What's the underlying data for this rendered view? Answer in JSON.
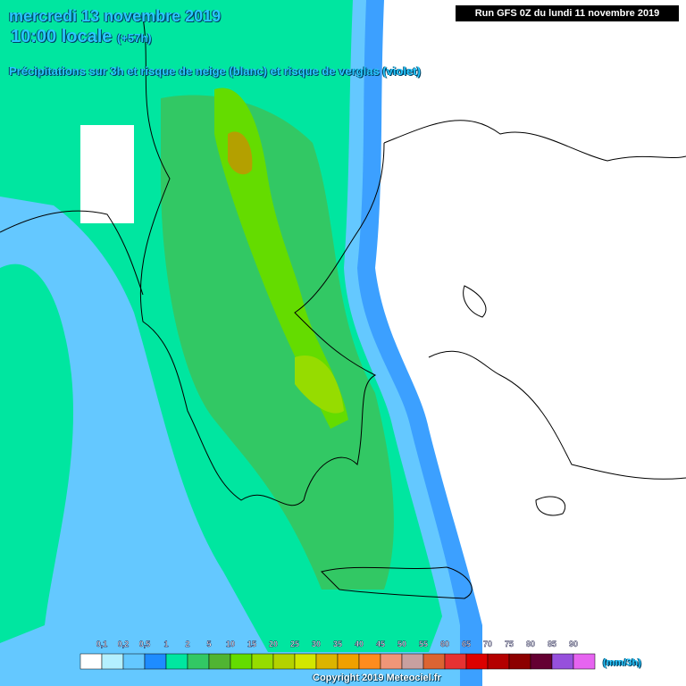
{
  "header": {
    "date": "mercredi 13 novembre 2019",
    "time": "10:00 locale",
    "lead": "(+57h)",
    "subtitle": "Précipitations sur 3h et risque de neige (blanc) et risque de verglas (violet)"
  },
  "run": "Run GFS 0Z du lundi 11 novembre 2019",
  "legend": {
    "labels": [
      "0,1",
      "0,2",
      "0,5",
      "1",
      "2",
      "5",
      "10",
      "15",
      "20",
      "25",
      "30",
      "35",
      "40",
      "45",
      "50",
      "55",
      "60",
      "65",
      "70",
      "75",
      "80",
      "85",
      "90"
    ],
    "colors": [
      "#ffffff",
      "#b4f0ff",
      "#64c8ff",
      "#1e8cff",
      "#00e6a0",
      "#32c864",
      "#50b432",
      "#64dc00",
      "#96dc00",
      "#b4d200",
      "#d2e600",
      "#dcb400",
      "#f0a000",
      "#ff8c1e",
      "#f09678",
      "#c8a0a0",
      "#dc6432",
      "#e63232",
      "#dc0000",
      "#b40000",
      "#8c0000",
      "#640032",
      "#9650dc",
      "#e664f0"
    ],
    "unit": "(mm/3h)"
  },
  "copyright": "Copyright 2019 Meteociel.fr"
}
